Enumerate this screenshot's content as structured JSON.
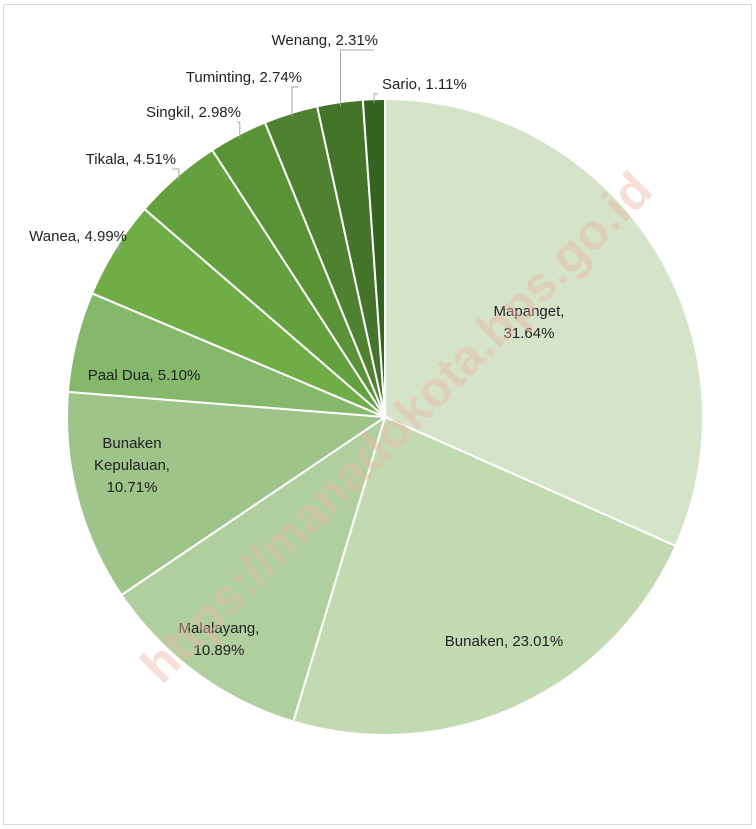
{
  "chart_data": {
    "type": "pie",
    "title": "",
    "slices": [
      {
        "label": "Mapanget",
        "value": 31.64,
        "text": [
          "Mapanget,",
          "31.64%"
        ],
        "color": "#d5e3c8"
      },
      {
        "label": "Bunaken",
        "value": 23.01,
        "text": [
          "Bunaken, 23.01%"
        ],
        "color": "#c2dab2"
      },
      {
        "label": "Malalayang",
        "value": 10.89,
        "text": [
          "Malalayang,",
          "10.89%"
        ],
        "color": "#b0cf9e"
      },
      {
        "label": "Bunaken Kepulauan",
        "value": 10.71,
        "text": [
          "Bunaken",
          "Kepulauan,",
          "10.71%"
        ],
        "color": "#9ec48a"
      },
      {
        "label": "Paal Dua",
        "value": 5.1,
        "text": [
          "Paal Dua, 5.10%"
        ],
        "color": "#85b86b"
      },
      {
        "label": "Wanea",
        "value": 4.99,
        "text": [
          "Wanea, 4.99%"
        ],
        "color": "#70ad47"
      },
      {
        "label": "Tikala",
        "value": 4.51,
        "text": [
          "Tikala, 4.51%"
        ],
        "color": "#64a03d"
      },
      {
        "label": "Singkil",
        "value": 2.98,
        "text": [
          "Singkil, 2.98%"
        ],
        "color": "#5a9236"
      },
      {
        "label": "Tuminting",
        "value": 2.74,
        "text": [
          "Tuminting, 2.74%"
        ],
        "color": "#4f8230"
      },
      {
        "label": "Wenang",
        "value": 2.31,
        "text": [
          "Wenang, 2.31%"
        ],
        "color": "#437429"
      },
      {
        "label": "Sario",
        "value": 1.11,
        "text": [
          "Sario, 1.11%"
        ],
        "color": "#33631f"
      }
    ],
    "legend": "none",
    "watermark": "https://manadokota.bps.go.id"
  }
}
